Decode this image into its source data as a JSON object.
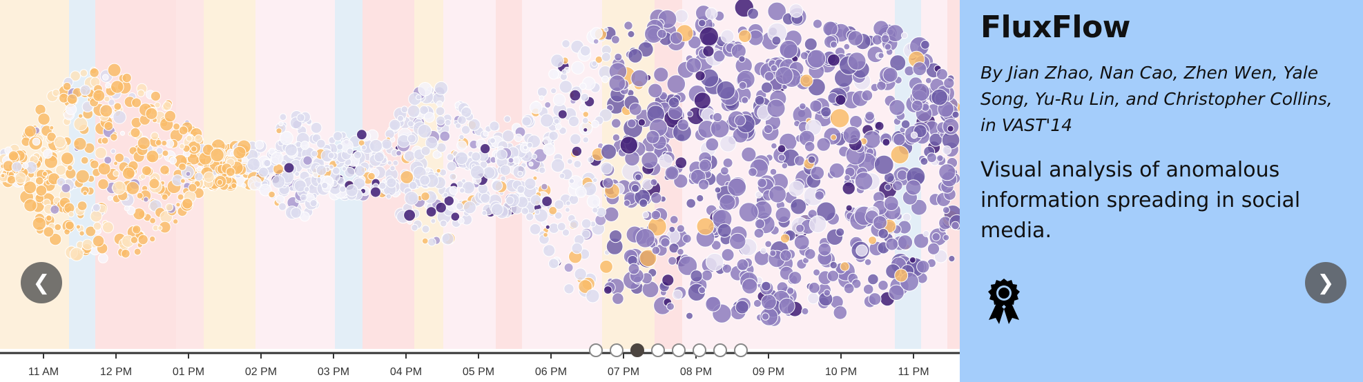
{
  "slide": {
    "title": "FluxFlow",
    "authors": "By Jian Zhao, Nan Cao, Zhen Wen, Yale Song, Yu-Ru Lin, and Christopher Collins, in VAST'14",
    "description": "Visual analysis of anomalous information spreading in social media.",
    "award_icon": "award-ribbon-icon",
    "panel_color": "#a4cdfb"
  },
  "navigation": {
    "prev_label": "❮",
    "next_label": "❯",
    "slide_count": 8,
    "active_index": 2
  },
  "timeline": {
    "tick_labels": [
      "11 AM",
      "12 PM",
      "01 PM",
      "02 PM",
      "03 PM",
      "04 PM",
      "05 PM",
      "06 PM",
      "07 PM",
      "08 PM",
      "09 PM",
      "10 PM",
      "11 PM"
    ],
    "colors": {
      "early": "#f9bc6a",
      "middle": "#dcdcee",
      "late": "#8d7cbd",
      "anomaly": "#3f1c74"
    }
  }
}
